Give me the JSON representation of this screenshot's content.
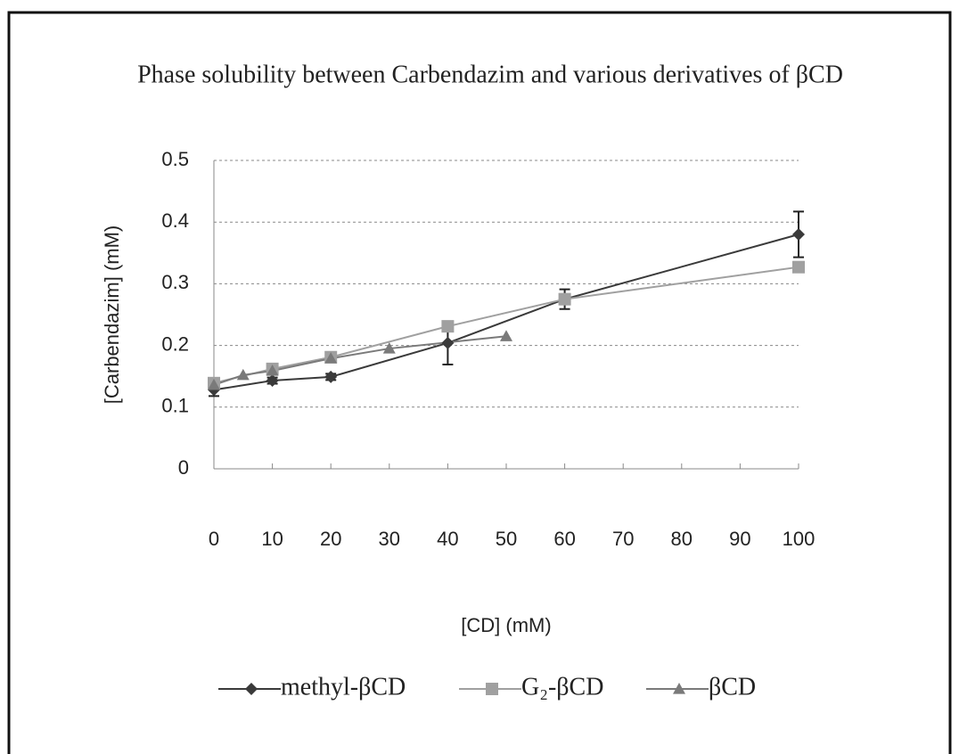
{
  "chart_data": {
    "type": "line",
    "title": "Phase solubility between Carbendazim and various derivatives of βCD",
    "x_label": "[CD] (mM)",
    "y_label": "[Carbendazim] (mM)",
    "xlim": [
      0,
      100
    ],
    "xticks": [
      0,
      10,
      20,
      30,
      40,
      50,
      60,
      70,
      80,
      90,
      100
    ],
    "ylim": [
      0,
      0.5
    ],
    "yticks": [
      0,
      0.1,
      0.2,
      0.3,
      0.4,
      0.5
    ],
    "grid": true,
    "series": [
      {
        "name": "methyl-βCD",
        "color": "#3a3a3a",
        "marker": "diamond",
        "x": [
          0,
          10,
          20,
          40,
          60,
          100
        ],
        "values": [
          0.128,
          0.143,
          0.149,
          0.204,
          0.275,
          0.38
        ],
        "errors": [
          0.01,
          0.005,
          0.005,
          0.035,
          0.016,
          0.037
        ]
      },
      {
        "name": "G₂-βCD",
        "color": "#a0a0a0",
        "marker": "square",
        "x": [
          0,
          10,
          20,
          40,
          60,
          100
        ],
        "values": [
          0.139,
          0.162,
          0.181,
          0.231,
          0.275,
          0.327
        ]
      },
      {
        "name": "βCD",
        "color": "#7a7a7a",
        "marker": "triangle",
        "x": [
          0,
          5,
          10,
          20,
          30,
          50
        ],
        "values": [
          0.136,
          0.152,
          0.159,
          0.179,
          0.195,
          0.215
        ]
      }
    ]
  }
}
